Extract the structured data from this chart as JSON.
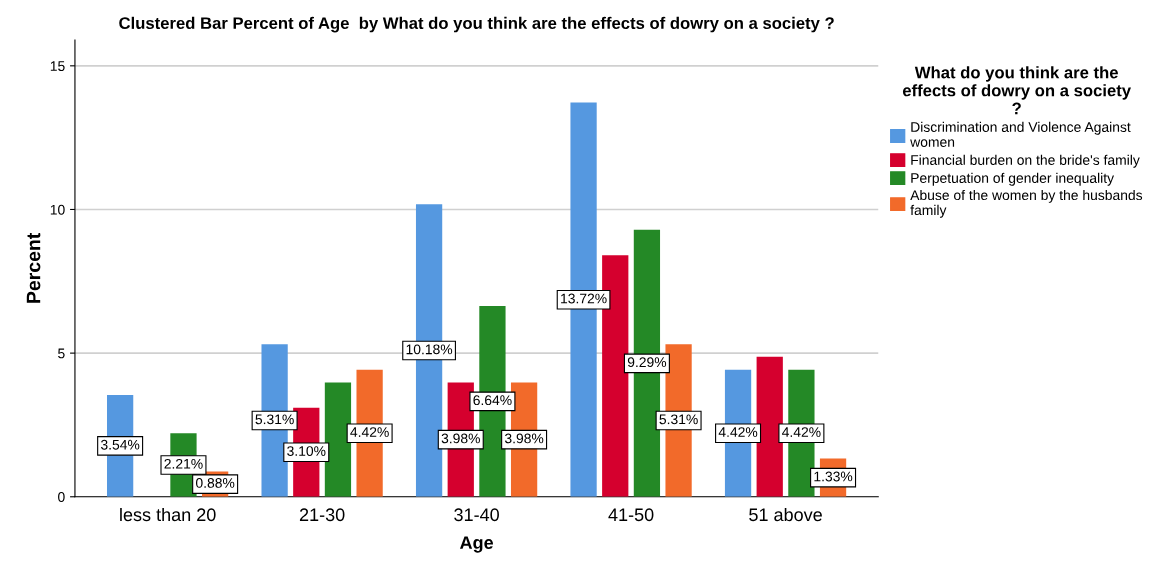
{
  "chart_data": {
    "type": "bar",
    "title": "Clustered Bar Percent of Age  by What do you think are the effects of dowry on a society ?",
    "xlabel": "Age",
    "ylabel": "Percent",
    "legend_title": "What do you think are the effects of dowry on a society ?",
    "categories": [
      "less than 20",
      "21-30",
      "31-40",
      "41-50",
      "51 above"
    ],
    "series": [
      {
        "name": "Discrimination and Violence Against women",
        "color": "#5598e0",
        "values": [
          3.54,
          5.31,
          10.18,
          13.72,
          4.42
        ],
        "value_labels": [
          "3.54%",
          "5.31%",
          "10.18%",
          "13.72%",
          "4.42%"
        ]
      },
      {
        "name": "Financial burden on the bride's family",
        "color": "#d5002e",
        "values": [
          null,
          3.1,
          3.98,
          8.41,
          4.87
        ],
        "value_labels": [
          null,
          "3.10%",
          "3.98%",
          null,
          null
        ]
      },
      {
        "name": "Perpetuation of gender inequality",
        "color": "#248926",
        "values": [
          2.21,
          3.98,
          6.64,
          9.29,
          4.42
        ],
        "value_labels": [
          "2.21%",
          null,
          "6.64%",
          "9.29%",
          "4.42%"
        ]
      },
      {
        "name": "Abuse of the women by the husbands family",
        "color": "#f26a2a",
        "values": [
          0.88,
          4.42,
          3.98,
          5.31,
          1.33
        ],
        "value_labels": [
          "0.88%",
          "4.42%",
          "3.98%",
          "5.31%",
          "1.33%"
        ]
      }
    ],
    "ylim": [
      0,
      15.9
    ],
    "yticks": [
      0,
      5,
      10,
      15
    ],
    "grid": "y",
    "legend": "right"
  }
}
